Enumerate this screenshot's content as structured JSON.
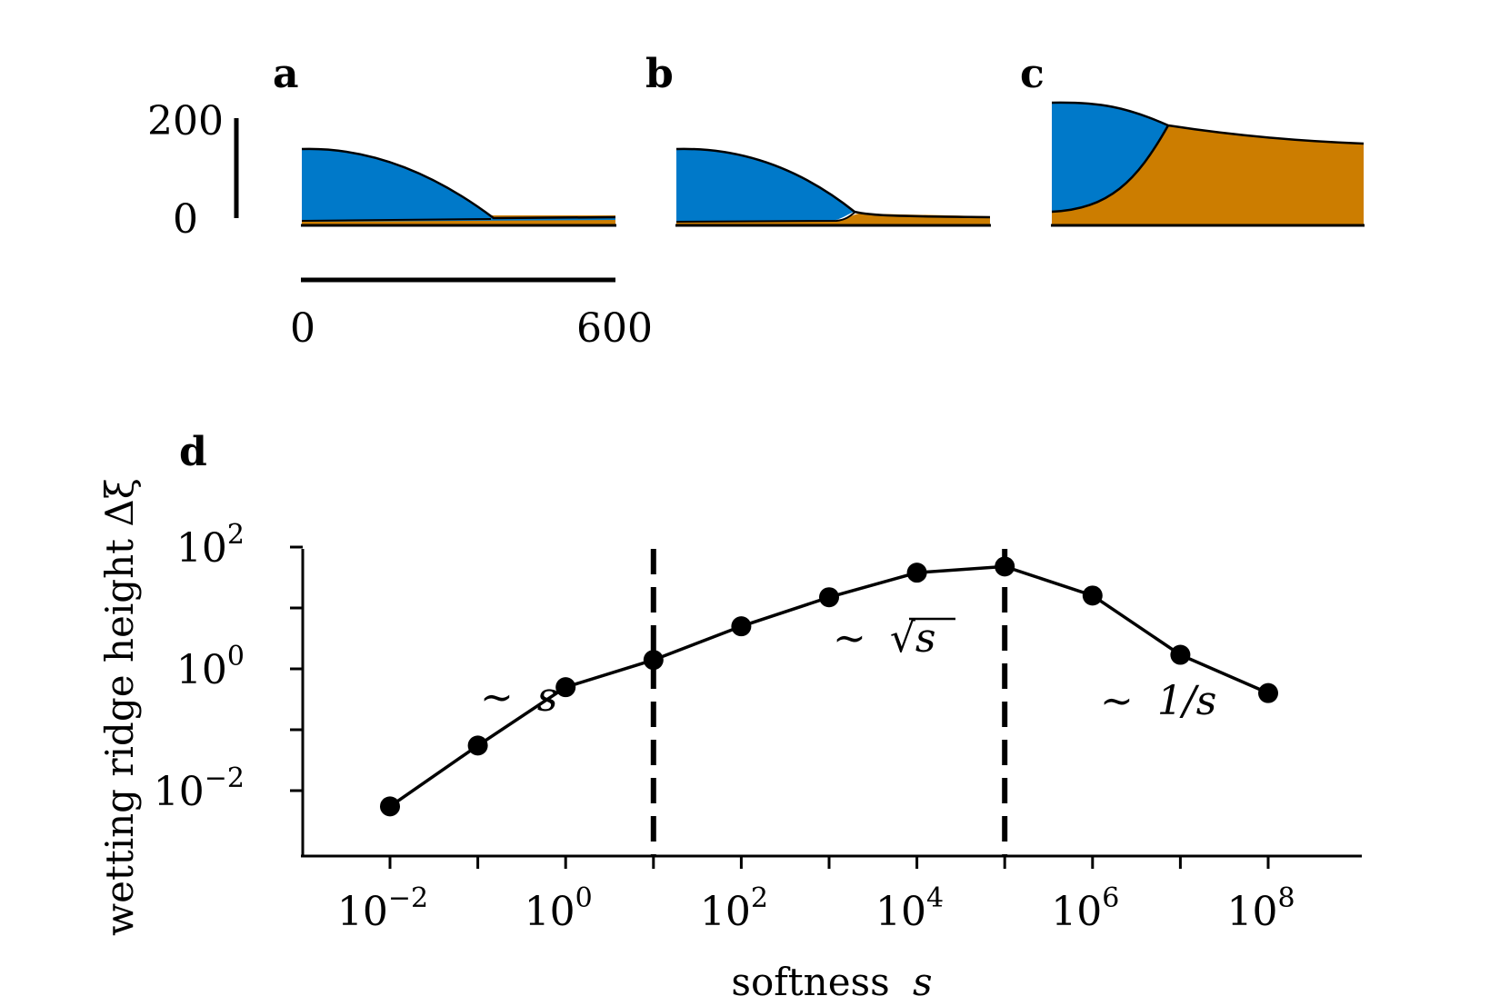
{
  "colors": {
    "liquid": "#0079c9",
    "solid": "#cc7d00",
    "ink": "#000000"
  },
  "panels": {
    "a": {
      "label": "a"
    },
    "b": {
      "label": "b"
    },
    "c": {
      "label": "c"
    },
    "d": {
      "label": "d"
    }
  },
  "scale_bars": {
    "vertical": {
      "top_label": "200",
      "bottom_label": "0"
    },
    "horizontal": {
      "left_label": "0",
      "right_label": "600"
    }
  },
  "chart_data": {
    "type": "line",
    "title": "",
    "xlabel": "softness",
    "xlabel_symbol": "s",
    "ylabel": "wetting ridge height Δξ",
    "xscale": "log",
    "yscale": "log",
    "xlim_exp": [
      -3,
      9
    ],
    "ylim_exp": [
      -3,
      2
    ],
    "x_tick_labels": [
      {
        "base": "10",
        "exp": "−2",
        "x_exp": -2
      },
      {
        "base": "10",
        "exp": "0",
        "x_exp": 0
      },
      {
        "base": "10",
        "exp": "2",
        "x_exp": 2
      },
      {
        "base": "10",
        "exp": "4",
        "x_exp": 4
      },
      {
        "base": "10",
        "exp": "6",
        "x_exp": 6
      },
      {
        "base": "10",
        "exp": "8",
        "x_exp": 8
      }
    ],
    "y_tick_labels": [
      {
        "base": "10",
        "exp": "2",
        "y_exp": 2
      },
      {
        "base": "10",
        "exp": "0",
        "y_exp": 0
      },
      {
        "base": "10",
        "exp": "−2",
        "y_exp": -2
      }
    ],
    "x_exponents": [
      -2,
      -1,
      0,
      1,
      2,
      3,
      4,
      5,
      6,
      7,
      8
    ],
    "y_values": [
      0.0055,
      0.055,
      0.5,
      1.4,
      5.0,
      15.0,
      38.0,
      48.0,
      16.0,
      1.7,
      0.4
    ],
    "dashed_lines_x_exp": [
      1,
      5
    ],
    "annotations": [
      {
        "prefix": "∼",
        "text": "s",
        "region": "low"
      },
      {
        "prefix": "∼",
        "text": "√s",
        "region": "mid"
      },
      {
        "prefix": "∼",
        "text": "1/s",
        "region": "high"
      }
    ],
    "grid": false,
    "legend": "none"
  }
}
